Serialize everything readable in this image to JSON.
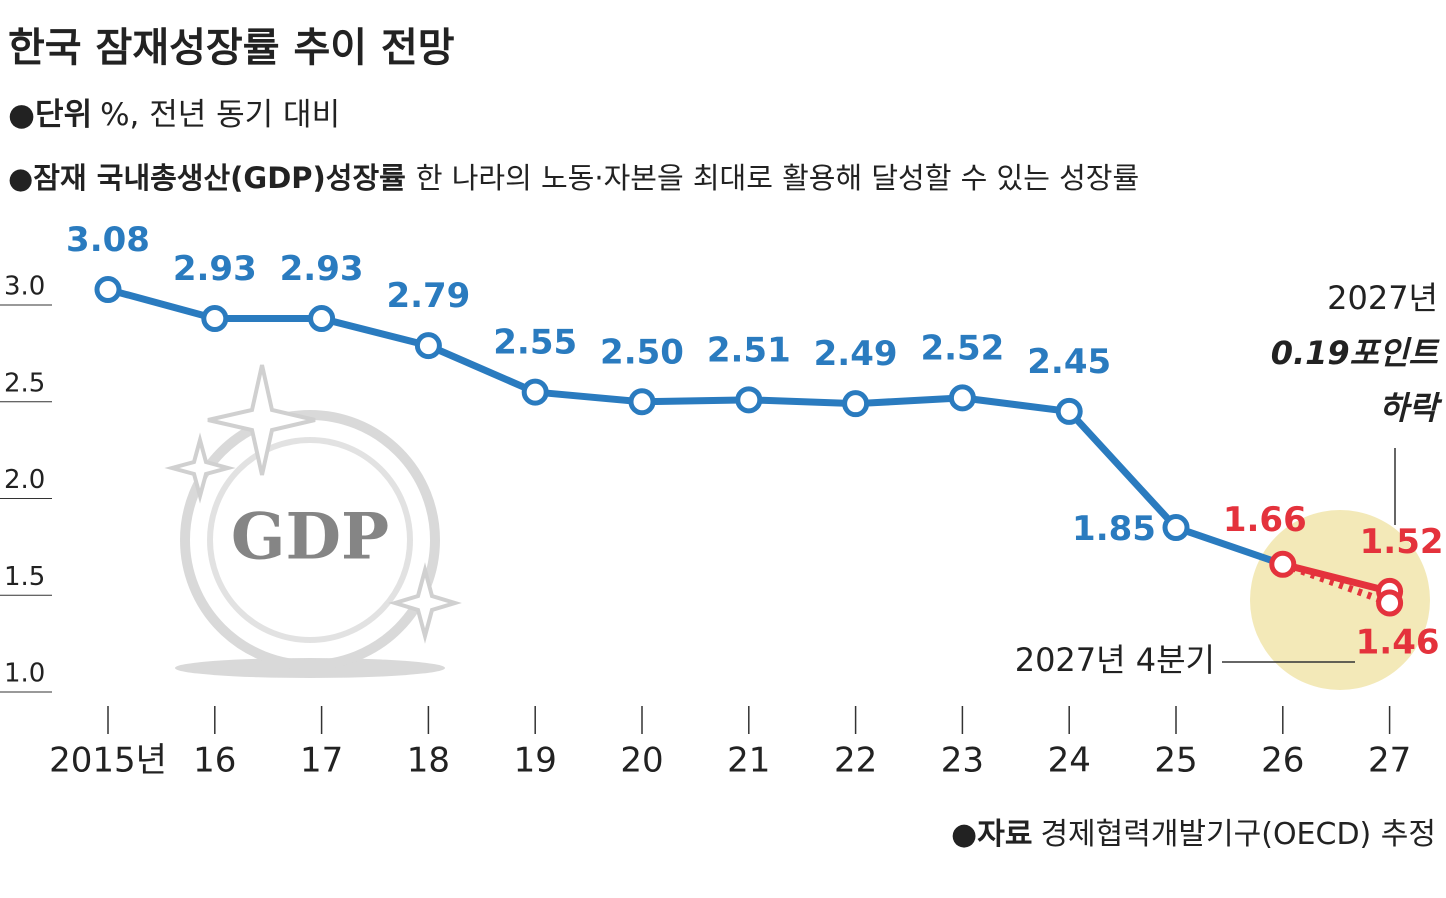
{
  "chart_data": {
    "type": "line",
    "title": "한국 잠재성장률 추이 전망",
    "unit_label": "●단위",
    "unit_text": "%, 전년 동기 대비",
    "definition_label": "●잠재 국내총생산(GDP)성장률",
    "definition_text": "한 나라의 노동·자본을 최대로 활용해 달성할 수 있는 성장률",
    "source_label": "●자료",
    "source_text": "경제협력개발기구(OECD) 추정",
    "logo_text": "GDP",
    "categories": [
      "2015년",
      "16",
      "17",
      "18",
      "19",
      "20",
      "21",
      "22",
      "23",
      "24",
      "25",
      "26",
      "27"
    ],
    "series": [
      {
        "color": "#2a7bbf",
        "line_style": "solid",
        "values": [
          3.08,
          2.93,
          2.93,
          2.79,
          2.55,
          2.5,
          2.51,
          2.49,
          2.52,
          2.45,
          1.85,
          null,
          null
        ],
        "value_labels": [
          "3.08",
          "2.93",
          "2.93",
          "2.79",
          "2.55",
          "2.50",
          "2.51",
          "2.49",
          "2.52",
          "2.45",
          "1.85",
          null,
          null
        ]
      },
      {
        "color": "#e4323c",
        "line_style": "solid",
        "values": [
          null,
          null,
          null,
          null,
          null,
          null,
          null,
          null,
          null,
          null,
          null,
          1.66,
          1.52
        ],
        "value_labels": [
          null,
          null,
          null,
          null,
          null,
          null,
          null,
          null,
          null,
          null,
          null,
          "1.66",
          "1.52"
        ]
      },
      {
        "color": "#e4323c",
        "line_style": "dotted",
        "values": [
          null,
          null,
          null,
          null,
          null,
          null,
          null,
          null,
          null,
          null,
          null,
          null,
          1.46
        ],
        "value_labels": [
          null,
          null,
          null,
          null,
          null,
          null,
          null,
          null,
          null,
          null,
          null,
          null,
          "1.46"
        ]
      }
    ],
    "ylim": [
      1.0,
      3.0
    ],
    "yticks": [
      {
        "value": 1,
        "label": "1.0"
      },
      1.5,
      {
        "value": 2,
        "label": "2.0"
      },
      2.5,
      {
        "value": 3,
        "label": "3.0"
      }
    ],
    "grid": true,
    "annotations": {
      "year": "2027년",
      "drop": "0.19포인트",
      "drop_word": "하락",
      "quarter": "2027년 4분기"
    }
  }
}
